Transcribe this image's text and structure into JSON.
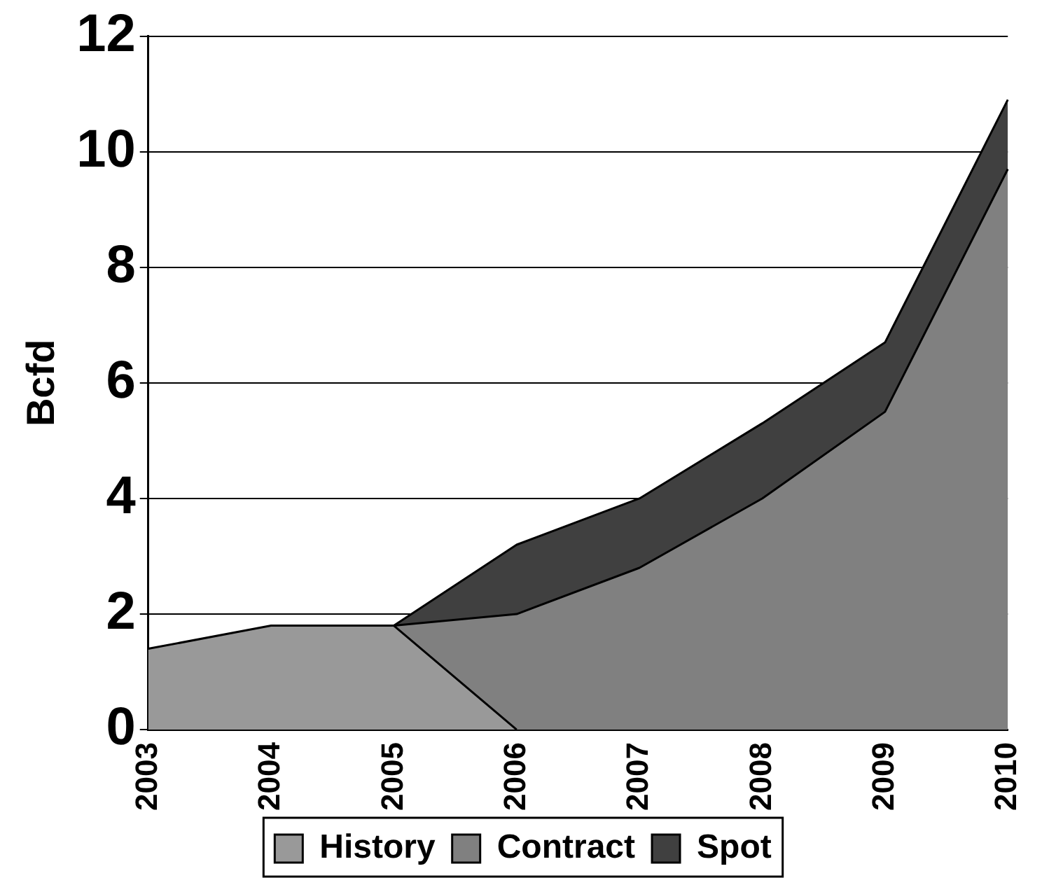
{
  "chart_data": {
    "type": "area",
    "ylabel": "Bcfd",
    "categories": [
      "2003",
      "2004",
      "2005",
      "2006",
      "2007",
      "2008",
      "2009",
      "2010"
    ],
    "stacked": true,
    "series": [
      {
        "name": "History",
        "color": "#999999",
        "values": [
          1.4,
          1.8,
          1.8,
          0,
          null,
          null,
          null,
          null
        ]
      },
      {
        "name": "Contract",
        "color": "#808080",
        "values": [
          null,
          null,
          0,
          2.0,
          2.8,
          4.0,
          5.5,
          9.7
        ]
      },
      {
        "name": "Spot",
        "color": "#404040",
        "values": [
          null,
          null,
          0,
          1.2,
          1.2,
          1.3,
          1.2,
          1.2
        ]
      }
    ],
    "ylim": [
      0,
      12
    ],
    "yticks": [
      0,
      2,
      4,
      6,
      8,
      10,
      12
    ],
    "grid": "y",
    "legend": "bottom"
  }
}
